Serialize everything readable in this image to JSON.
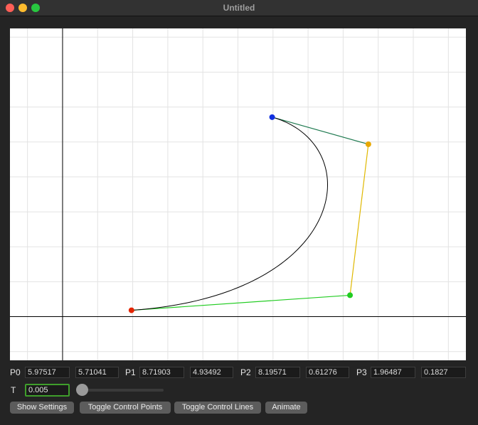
{
  "window": {
    "title": "Untitled"
  },
  "graph": {
    "x_range": [
      -1.5,
      11.5
    ],
    "y_range": [
      -1.25,
      8.25
    ],
    "grid_step": 1,
    "axis_color": "#000000",
    "grid_color": "#e3e3e3",
    "curve_color": "#000000",
    "control_line_colors": [
      "#22cc22",
      "#e0b800",
      "#1f7a50"
    ],
    "point_colors": {
      "p0": "#e32400",
      "p1": "#22cc22",
      "p2": "#e8a800",
      "p3": "#1030e0"
    }
  },
  "controls": {
    "p0": {
      "label": "P0",
      "x": "5.97517",
      "y": "5.71041"
    },
    "p1": {
      "label": "P1",
      "x": "8.71903",
      "y": "4.93492"
    },
    "p2": {
      "label": "P2",
      "x": "8.19571",
      "y": "0.61276"
    },
    "p3": {
      "label": "P3",
      "x": "1.96487",
      "y": "0.1827"
    },
    "t": {
      "label": "T",
      "value": "0.005",
      "slider_fraction": 0.005
    }
  },
  "buttons": {
    "show_settings": "Show Settings",
    "toggle_control_points": "Toggle Control Points",
    "toggle_control_lines": "Toggle Control Lines",
    "animate": "Animate"
  }
}
